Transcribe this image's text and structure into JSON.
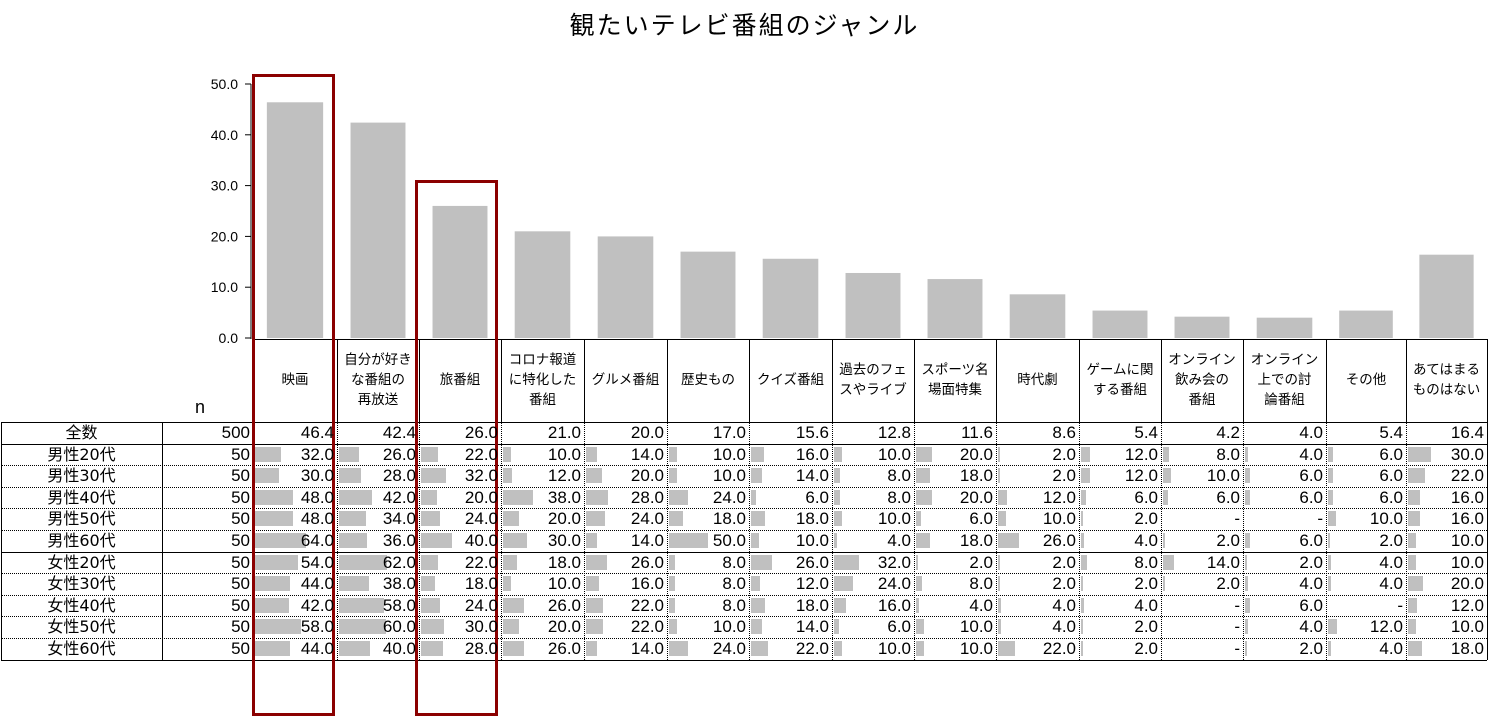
{
  "chart_data": {
    "type": "bar",
    "title": "観たいテレビ番組のジャンル",
    "n_label": "n",
    "categories": [
      "映画",
      "自分が好きな番組の再放送",
      "旅番組",
      "コロナ報道に特化した番組",
      "グルメ番組",
      "歴史もの",
      "クイズ番組",
      "過去のフェスやライブ",
      "スポーツ名場面特集",
      "時代劇",
      "ゲームに関する番組",
      "オンライン飲み会の番組",
      "オンライン上での討論番組",
      "その他",
      "あてはまるものはない"
    ],
    "category_lines": [
      [
        "映画"
      ],
      [
        "自分が好き",
        "な番組の",
        "再放送"
      ],
      [
        "旅番組"
      ],
      [
        "コロナ報道",
        "に特化した",
        "番組"
      ],
      [
        "グルメ番組"
      ],
      [
        "歴史もの"
      ],
      [
        "クイズ番組"
      ],
      [
        "過去のフェ",
        "スやライブ"
      ],
      [
        "スポーツ名",
        "場面特集"
      ],
      [
        "時代劇"
      ],
      [
        "ゲームに関",
        "する番組"
      ],
      [
        "オンライン",
        "飲み会の",
        "番組"
      ],
      [
        "オンライン",
        "上での討",
        "論番組"
      ],
      [
        "その他"
      ],
      [
        "あてはまる",
        "ものはない"
      ]
    ],
    "y_ticks": [
      "50.0",
      "40.0",
      "30.0",
      "20.0",
      "10.0",
      "0.0"
    ],
    "ylim": [
      0,
      50
    ],
    "values": [
      46.4,
      42.4,
      26.0,
      21.0,
      20.0,
      17.0,
      15.6,
      12.8,
      11.6,
      8.6,
      5.4,
      4.2,
      4.0,
      5.4,
      16.4
    ],
    "bar_color": "#c0c0c0",
    "highlight_color": "#8b0000",
    "highlighted_categories": [
      "映画",
      "旅番組"
    ],
    "table": {
      "rows": [
        {
          "label": "全数",
          "n": "500",
          "values": [
            "46.4",
            "42.4",
            "26.0",
            "21.0",
            "20.0",
            "17.0",
            "15.6",
            "12.8",
            "11.6",
            "8.6",
            "5.4",
            "4.2",
            "4.0",
            "5.4",
            "16.4"
          ]
        },
        {
          "label": "男性20代",
          "n": "50",
          "values": [
            "32.0",
            "26.0",
            "22.0",
            "10.0",
            "14.0",
            "10.0",
            "16.0",
            "10.0",
            "20.0",
            "2.0",
            "12.0",
            "8.0",
            "4.0",
            "6.0",
            "30.0"
          ]
        },
        {
          "label": "男性30代",
          "n": "50",
          "values": [
            "30.0",
            "28.0",
            "32.0",
            "12.0",
            "20.0",
            "10.0",
            "14.0",
            "8.0",
            "18.0",
            "2.0",
            "12.0",
            "10.0",
            "6.0",
            "6.0",
            "22.0"
          ]
        },
        {
          "label": "男性40代",
          "n": "50",
          "values": [
            "48.0",
            "42.0",
            "20.0",
            "38.0",
            "28.0",
            "24.0",
            "6.0",
            "8.0",
            "20.0",
            "12.0",
            "6.0",
            "6.0",
            "6.0",
            "6.0",
            "16.0"
          ]
        },
        {
          "label": "男性50代",
          "n": "50",
          "values": [
            "48.0",
            "34.0",
            "24.0",
            "20.0",
            "24.0",
            "18.0",
            "18.0",
            "10.0",
            "6.0",
            "10.0",
            "2.0",
            "-",
            "-",
            "10.0",
            "16.0"
          ]
        },
        {
          "label": "男性60代",
          "n": "50",
          "values": [
            "64.0",
            "36.0",
            "40.0",
            "30.0",
            "14.0",
            "50.0",
            "10.0",
            "4.0",
            "18.0",
            "26.0",
            "4.0",
            "2.0",
            "6.0",
            "2.0",
            "10.0"
          ]
        },
        {
          "label": "女性20代",
          "n": "50",
          "values": [
            "54.0",
            "62.0",
            "22.0",
            "18.0",
            "26.0",
            "8.0",
            "26.0",
            "32.0",
            "2.0",
            "2.0",
            "8.0",
            "14.0",
            "2.0",
            "4.0",
            "10.0"
          ]
        },
        {
          "label": "女性30代",
          "n": "50",
          "values": [
            "44.0",
            "38.0",
            "18.0",
            "10.0",
            "16.0",
            "8.0",
            "12.0",
            "24.0",
            "8.0",
            "2.0",
            "2.0",
            "2.0",
            "4.0",
            "4.0",
            "20.0"
          ]
        },
        {
          "label": "女性40代",
          "n": "50",
          "values": [
            "42.0",
            "58.0",
            "24.0",
            "26.0",
            "22.0",
            "8.0",
            "18.0",
            "16.0",
            "4.0",
            "4.0",
            "4.0",
            "-",
            "6.0",
            "-",
            "12.0"
          ]
        },
        {
          "label": "女性50代",
          "n": "50",
          "values": [
            "58.0",
            "60.0",
            "30.0",
            "20.0",
            "22.0",
            "10.0",
            "14.0",
            "6.0",
            "10.0",
            "4.0",
            "2.0",
            "-",
            "4.0",
            "12.0",
            "10.0"
          ]
        },
        {
          "label": "女性60代",
          "n": "50",
          "values": [
            "44.0",
            "40.0",
            "28.0",
            "26.0",
            "14.0",
            "24.0",
            "22.0",
            "10.0",
            "10.0",
            "22.0",
            "2.0",
            "-",
            "2.0",
            "4.0",
            "18.0"
          ]
        }
      ]
    }
  }
}
